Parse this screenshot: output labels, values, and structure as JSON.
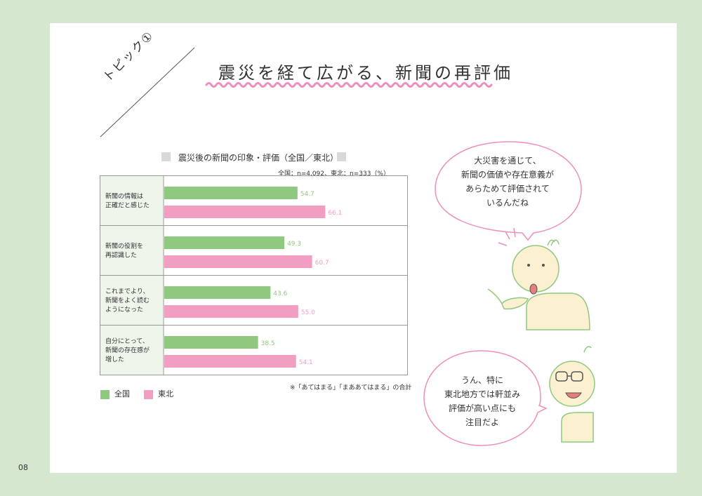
{
  "page": {
    "number": "08",
    "topic_label": "トピック①",
    "title": "震災を経て広がる、新聞の再評価"
  },
  "chart_data": {
    "type": "bar",
    "title": "震災後の新聞の印象・評価（全国／東北）",
    "sample_note": "全国：n=4,092、東北：n=333（%）",
    "footnote": "※「あてはまる」「まああてはまる」の合計",
    "categories": [
      [
        "新聞の情報は",
        "正確だと感じた"
      ],
      [
        "新聞の役割を",
        "再認識した"
      ],
      [
        "これまでより、",
        "新聞をよく読む",
        "ようになった"
      ],
      [
        "自分にとって、",
        "新聞の存在感が",
        "増した"
      ]
    ],
    "series": [
      {
        "name": "全国",
        "color": "#8fc97f",
        "values": [
          54.7,
          49.3,
          43.6,
          38.5
        ]
      },
      {
        "name": "東北",
        "color": "#f19ec2",
        "values": [
          66.1,
          60.7,
          55.0,
          54.1
        ]
      }
    ],
    "value_labels": [
      [
        "54.7",
        "49.3",
        "43.6",
        "38.5"
      ],
      [
        "66.1",
        "60.7",
        "55.0",
        "54.1"
      ]
    ],
    "xlim": [
      0,
      100
    ],
    "legend_position": "bottom-left"
  },
  "bubbles": [
    {
      "lines": [
        "大災害を通じて、",
        "新聞の価値や存在意義が",
        "あらためて評価されて",
        "いるんだね"
      ]
    },
    {
      "lines": [
        "うん、特に",
        "東北地方では軒並み",
        "評価が高い点にも",
        "注目だよ"
      ]
    }
  ],
  "colors": {
    "background": "#d5e8cf",
    "label_cell": "#eef5eb",
    "wave": "#ee8fbb",
    "bubble_stroke": "#ee8fbb"
  }
}
